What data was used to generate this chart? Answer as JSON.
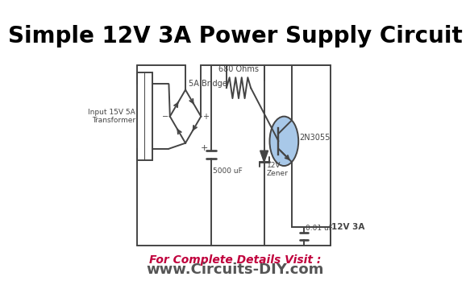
{
  "title": "Simple 12V 3A Power Supply Circuit",
  "title_fontsize": 20,
  "title_fontweight": "bold",
  "title_color": "#000000",
  "bg_color": "#ffffff",
  "circuit_color": "#444444",
  "footer_line1": "For Complete Details Visit :",
  "footer_line1_color": "#c0003c",
  "footer_line2": "www.Circuits-DIY.com",
  "footer_line2_color": "#555555",
  "footer_fontsize1": 10,
  "footer_fontsize2": 13,
  "label_transformer": "Input 15V 5A\nTransformer",
  "label_bridge": "5A Bridge",
  "label_resistor": "680 Ohms",
  "label_transistor": "2N3055",
  "label_capacitor1": "5000 uF",
  "label_zener": "12V\nZener",
  "label_capacitor2": "0.01 uF",
  "label_output": "12V 3A",
  "label_minus": "−",
  "label_plus": "+"
}
